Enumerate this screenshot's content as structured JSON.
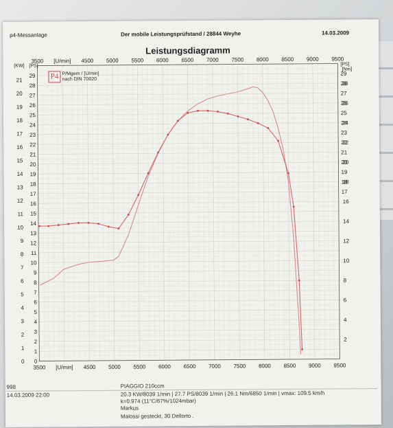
{
  "header": {
    "left": "p4-Messanlage",
    "center": "Der mobile Leistungsprüfstand  / 28844 Weyhe",
    "date": "14.03.2009"
  },
  "logo": {
    "text": "P4",
    "line1": "P/Mgem / [U/min]",
    "line2": "nach DIN 70020"
  },
  "chart_data": {
    "type": "line",
    "title": "Leistungsdiagramm",
    "x_unit_label": "[U/min]",
    "x_ticks": [
      "3500",
      "4500",
      "5000",
      "5500",
      "6000",
      "6500",
      "7000",
      "7500",
      "8000",
      "8500",
      "9000",
      "9500"
    ],
    "x_range": [
      3500,
      9500
    ],
    "left_unit_kw": "[KW]",
    "left_unit_ps": "[PS]",
    "kw_ticks": [
      "21",
      "20",
      "19",
      "18",
      "17",
      "16",
      "15",
      "14",
      "13",
      "12",
      "11",
      "10",
      "9",
      "8",
      "7",
      "6",
      "5",
      "4",
      "3",
      "2",
      "1",
      "0"
    ],
    "ps_ticks_left": [
      "29",
      "28",
      "27",
      "26",
      "25",
      "24",
      "23",
      "22",
      "21",
      "20",
      "19",
      "18",
      "17",
      "16",
      "15",
      "14",
      "13",
      "12",
      "11",
      "10",
      "9",
      "8",
      "7",
      "6",
      "5",
      "4",
      "3",
      "2",
      "1",
      "0"
    ],
    "right_unit_ps": "[PS]",
    "ps_ticks_right": [
      "29",
      "28",
      "27",
      "26",
      "25",
      "24",
      "23",
      "22",
      "21",
      "20",
      "19",
      "18",
      "17"
    ],
    "right_unit_nm": "[Nm]",
    "nm_ticks": [
      "28",
      "26",
      "24",
      "22",
      "20",
      "18",
      "16",
      "14",
      "12",
      "10",
      "8",
      "6",
      "4",
      "2"
    ],
    "ps_range": [
      0,
      30
    ],
    "nm_range": [
      0,
      30
    ],
    "grid": true,
    "series": [
      {
        "color": "#d88a8a",
        "axis": "ps",
        "x": [
          3520,
          3800,
          4000,
          4300,
          4500,
          4800,
          5000,
          5100,
          5300,
          5500,
          5700,
          5900,
          6100,
          6300,
          6500,
          6700,
          6900,
          7100,
          7300,
          7500,
          7700,
          7800,
          7900,
          8000,
          8100,
          8200,
          8300,
          8400,
          8500,
          8600,
          8650,
          8700,
          8720
        ],
        "y": [
          7.7,
          8.4,
          9.3,
          9.8,
          10.0,
          10.1,
          10.2,
          10.6,
          12.8,
          15.8,
          18.7,
          21.0,
          22.9,
          24.3,
          25.3,
          26.0,
          26.5,
          26.8,
          27.0,
          27.2,
          27.5,
          27.7,
          27.6,
          27.1,
          26.3,
          25.2,
          23.5,
          21.3,
          18.0,
          12.0,
          7.5,
          3.0,
          0.5
        ]
      },
      {
        "color": "#d06868",
        "axis": "nm",
        "markers": true,
        "x": [
          3520,
          3700,
          3900,
          4100,
          4300,
          4500,
          4700,
          4900,
          5100,
          5300,
          5500,
          5700,
          5900,
          6100,
          6300,
          6500,
          6700,
          6900,
          7100,
          7300,
          7500,
          7700,
          7900,
          8100,
          8300,
          8500,
          8600,
          8700,
          8750
        ],
        "y": [
          13.7,
          13.7,
          13.8,
          13.9,
          14.0,
          14.0,
          13.9,
          13.6,
          13.4,
          14.8,
          16.8,
          19.0,
          21.1,
          22.9,
          24.3,
          25.1,
          25.3,
          25.3,
          25.2,
          25.0,
          24.7,
          24.4,
          24.0,
          23.5,
          22.2,
          18.9,
          15.5,
          8.0,
          1.0
        ]
      }
    ]
  },
  "footer": {
    "id": "998",
    "datetime": "14.03.2009  22:00",
    "vehicle": "PIAGGIO 210ccm",
    "results": "20.3 KW/8039 1/min  |  27.7 PS/8039 1/min  |  26.1 Nm/6850 1/min | vmax: 109.5 km/h",
    "conditions": "k=0.974 (11°C/67%/1024mbar)",
    "operator": "Markus",
    "notes": "Malossi gesteckt, 30 Dellorto ."
  }
}
